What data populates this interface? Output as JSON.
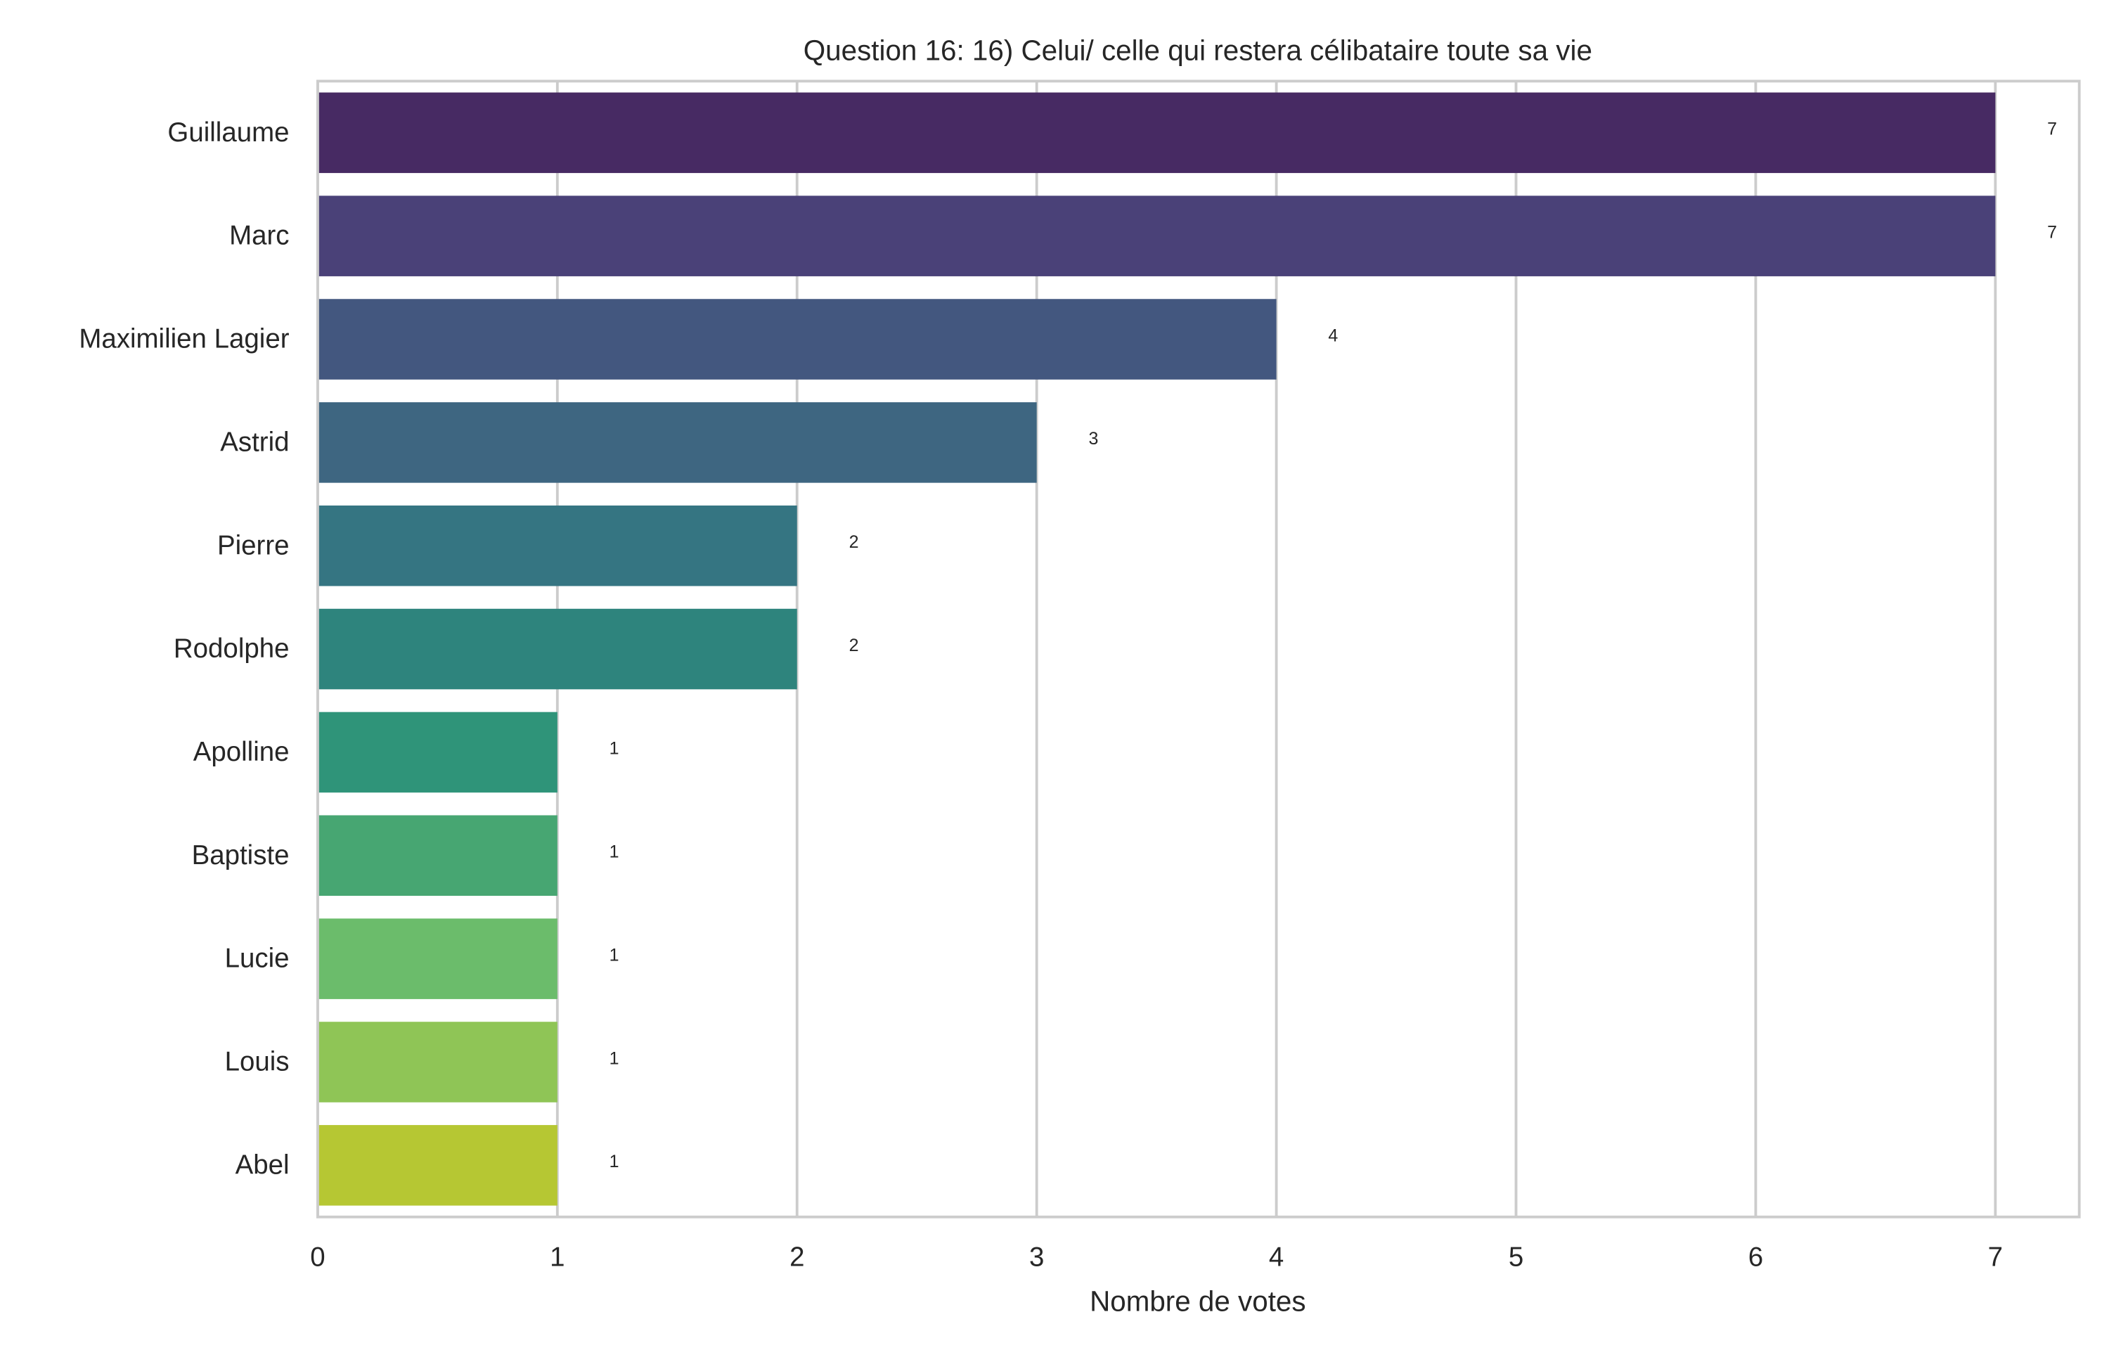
{
  "chart_data": {
    "type": "barh",
    "title": "Question 16: 16) Celui/ celle qui restera célibataire toute sa vie",
    "x_label": "Nombre de votes",
    "categories": [
      "Guillaume",
      "Marc",
      "Maximilien Lagier",
      "Astrid",
      "Pierre",
      "Rodolphe",
      "Apolline",
      "Baptiste",
      "Lucie",
      "Louis",
      "Abel"
    ],
    "values": [
      7,
      7,
      4,
      3,
      2,
      2,
      1,
      1,
      1,
      1,
      1
    ],
    "colors": [
      "#472a63",
      "#4a4178",
      "#43577f",
      "#3e6681",
      "#357582",
      "#2e847d",
      "#2f9479",
      "#47a672",
      "#6bbc6b",
      "#8fc556",
      "#b6c733"
    ],
    "xlim": [
      0,
      7.35
    ],
    "xticks": [
      0,
      1,
      2,
      3,
      4,
      5,
      6,
      7
    ],
    "grid": true
  }
}
